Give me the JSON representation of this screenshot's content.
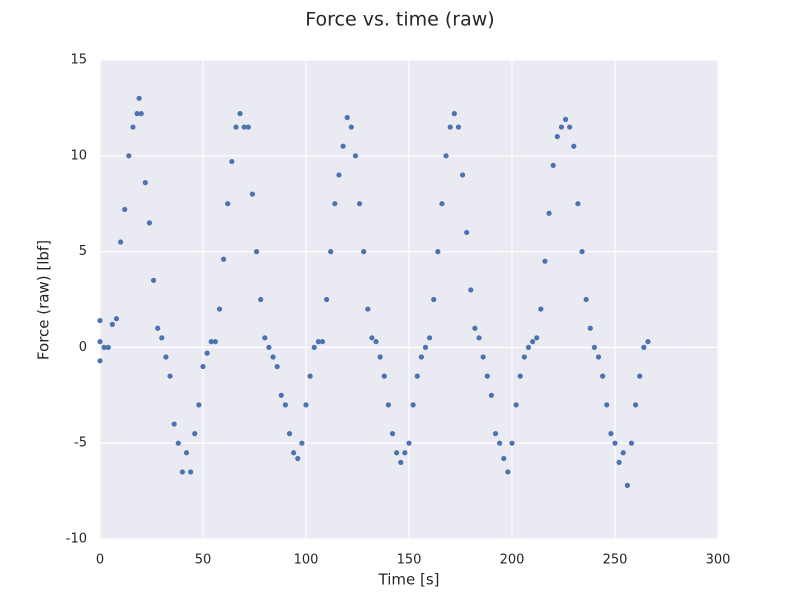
{
  "chart_data": {
    "type": "scatter",
    "title": "Force vs. time (raw)",
    "xlabel": "Time [s]",
    "ylabel": "Force (raw) [lbf]",
    "color": "#4c72b0",
    "grid": true,
    "xlim": [
      0,
      300
    ],
    "xticks": [
      0,
      50,
      100,
      150,
      200,
      250,
      300
    ],
    "ylim": [
      -10,
      15
    ],
    "yticks": [
      -10,
      -5,
      0,
      5,
      10,
      15
    ],
    "x": [
      0,
      0,
      0,
      2,
      4,
      6,
      8,
      10,
      12,
      14,
      16,
      18,
      19,
      20,
      22,
      24,
      26,
      28,
      30,
      32,
      34,
      36,
      38,
      40,
      42,
      44,
      46,
      48,
      50,
      52,
      54,
      56,
      58,
      60,
      62,
      64,
      66,
      68,
      70,
      72,
      74,
      76,
      78,
      80,
      82,
      84,
      86,
      88,
      90,
      92,
      94,
      96,
      98,
      100,
      102,
      104,
      106,
      108,
      110,
      112,
      114,
      116,
      118,
      120,
      122,
      124,
      126,
      128,
      130,
      132,
      134,
      136,
      138,
      140,
      142,
      144,
      146,
      148,
      150,
      152,
      154,
      156,
      158,
      160,
      162,
      164,
      166,
      168,
      170,
      172,
      174,
      176,
      178,
      180,
      182,
      184,
      186,
      188,
      190,
      192,
      194,
      196,
      198,
      200,
      202,
      204,
      206,
      208,
      210,
      212,
      214,
      216,
      218,
      220,
      222,
      224,
      226,
      228,
      230,
      232,
      234,
      236,
      238,
      240,
      242,
      244,
      246,
      248,
      250,
      252,
      254,
      256,
      258,
      260,
      262,
      264,
      266
    ],
    "y": [
      0.3,
      -0.7,
      1.4,
      0,
      0,
      1.2,
      1.5,
      5.5,
      7.2,
      10,
      11.5,
      12.2,
      13,
      12.2,
      8.6,
      6.5,
      3.5,
      1,
      0.5,
      -0.5,
      -1.5,
      -4,
      -5,
      -6.5,
      -5.5,
      -6.5,
      -4.5,
      -3,
      -1,
      -0.3,
      0.3,
      0.3,
      2,
      4.6,
      7.5,
      9.7,
      11.5,
      12.2,
      11.5,
      11.5,
      8,
      5,
      2.5,
      0.5,
      0,
      -0.5,
      -1,
      -2.5,
      -3,
      -4.5,
      -5.5,
      -5.8,
      -5,
      -3,
      -1.5,
      0,
      0.3,
      0.3,
      2.5,
      5,
      7.5,
      9,
      10.5,
      12,
      11.5,
      10,
      7.5,
      5,
      2,
      0.5,
      0.3,
      -0.5,
      -1.5,
      -3,
      -4.5,
      -5.5,
      -6,
      -5.5,
      -5,
      -3,
      -1.5,
      -0.5,
      0,
      0.5,
      2.5,
      5,
      7.5,
      10,
      11.5,
      12.2,
      11.5,
      9,
      6,
      3,
      1,
      0.5,
      -0.5,
      -1.5,
      -2.5,
      -4.5,
      -5,
      -5.8,
      -6.5,
      -5,
      -3,
      -1.5,
      -0.5,
      0,
      0.3,
      0.5,
      2,
      4.5,
      7,
      9.5,
      11,
      11.5,
      11.9,
      11.5,
      10.5,
      7.5,
      5,
      2.5,
      1,
      0,
      -0.5,
      -1.5,
      -3,
      -4.5,
      -5,
      -6,
      -5.5,
      -7.2,
      -5,
      -3,
      -1.5,
      0,
      0.3
    ]
  }
}
